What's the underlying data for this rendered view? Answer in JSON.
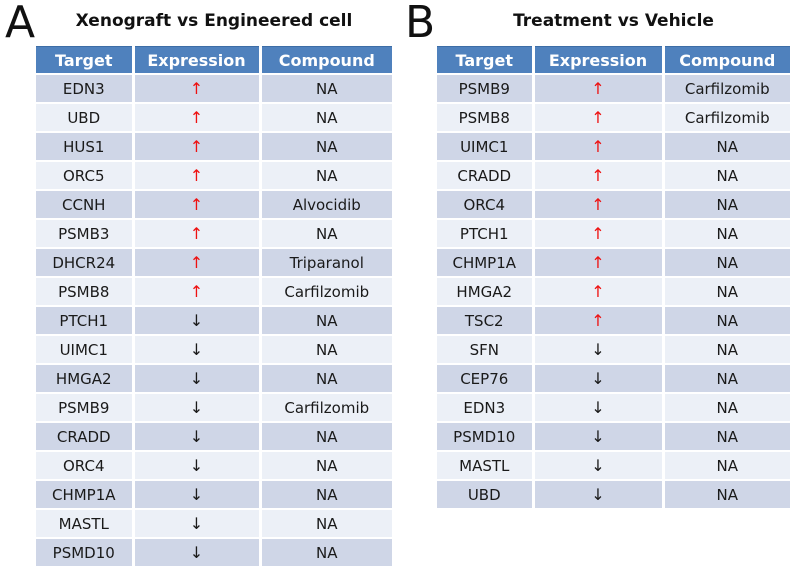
{
  "colors": {
    "header_bg": "#4f81bd",
    "header_border": "#3d6da6",
    "row_dark": "#cfd6e7",
    "row_light": "#ecf0f7",
    "arrow_up": "#ee1111",
    "arrow_down": "#1a1a1a"
  },
  "arrow_glyphs": {
    "up": "↑",
    "down": "↓"
  },
  "panels": [
    {
      "label": "A",
      "title": "Xenograft vs Engineered cell",
      "columns": [
        "Target",
        "Expression",
        "Compound"
      ],
      "rows": [
        {
          "target": "EDN3",
          "expression": "up",
          "compound": "NA"
        },
        {
          "target": "UBD",
          "expression": "up",
          "compound": "NA"
        },
        {
          "target": "HUS1",
          "expression": "up",
          "compound": "NA"
        },
        {
          "target": "ORC5",
          "expression": "up",
          "compound": "NA"
        },
        {
          "target": "CCNH",
          "expression": "up",
          "compound": "Alvocidib"
        },
        {
          "target": "PSMB3",
          "expression": "up",
          "compound": "NA"
        },
        {
          "target": "DHCR24",
          "expression": "up",
          "compound": "Triparanol"
        },
        {
          "target": "PSMB8",
          "expression": "up",
          "compound": "Carfilzomib"
        },
        {
          "target": "PTCH1",
          "expression": "down",
          "compound": "NA"
        },
        {
          "target": "UIMC1",
          "expression": "down",
          "compound": "NA"
        },
        {
          "target": "HMGA2",
          "expression": "down",
          "compound": "NA"
        },
        {
          "target": "PSMB9",
          "expression": "down",
          "compound": "Carfilzomib"
        },
        {
          "target": "CRADD",
          "expression": "down",
          "compound": "NA"
        },
        {
          "target": "ORC4",
          "expression": "down",
          "compound": "NA"
        },
        {
          "target": "CHMP1A",
          "expression": "down",
          "compound": "NA"
        },
        {
          "target": "MASTL",
          "expression": "down",
          "compound": "NA"
        },
        {
          "target": "PSMD10",
          "expression": "down",
          "compound": "NA"
        }
      ]
    },
    {
      "label": "B",
      "title": "Treatment vs Vehicle",
      "columns": [
        "Target",
        "Expression",
        "Compound"
      ],
      "rows": [
        {
          "target": "PSMB9",
          "expression": "up",
          "compound": "Carfilzomib"
        },
        {
          "target": "PSMB8",
          "expression": "up",
          "compound": "Carfilzomib"
        },
        {
          "target": "UIMC1",
          "expression": "up",
          "compound": "NA"
        },
        {
          "target": "CRADD",
          "expression": "up",
          "compound": "NA"
        },
        {
          "target": "ORC4",
          "expression": "up",
          "compound": "NA"
        },
        {
          "target": "PTCH1",
          "expression": "up",
          "compound": "NA"
        },
        {
          "target": "CHMP1A",
          "expression": "up",
          "compound": "NA"
        },
        {
          "target": "HMGA2",
          "expression": "up",
          "compound": "NA"
        },
        {
          "target": "TSC2",
          "expression": "up",
          "compound": "NA"
        },
        {
          "target": "SFN",
          "expression": "down",
          "compound": "NA"
        },
        {
          "target": "CEP76",
          "expression": "down",
          "compound": "NA"
        },
        {
          "target": "EDN3",
          "expression": "down",
          "compound": "NA"
        },
        {
          "target": "PSMD10",
          "expression": "down",
          "compound": "NA"
        },
        {
          "target": "MASTL",
          "expression": "down",
          "compound": "NA"
        },
        {
          "target": "UBD",
          "expression": "down",
          "compound": "NA"
        }
      ]
    }
  ]
}
